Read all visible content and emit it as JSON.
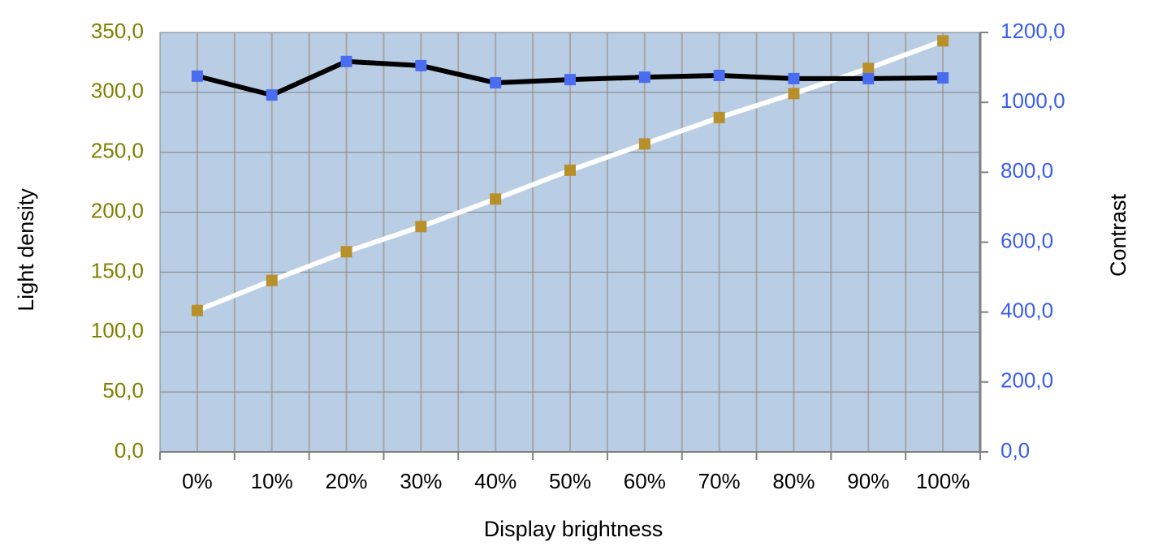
{
  "chart_data": {
    "type": "line",
    "xlabel": "Display brightness",
    "ylabel": "Light density",
    "y2label": "Contrast",
    "categories": [
      "0%",
      "10%",
      "20%",
      "30%",
      "40%",
      "50%",
      "60%",
      "70%",
      "80%",
      "90%",
      "100%"
    ],
    "series": [
      {
        "color": "#ffffff",
        "marker_color": "#b8902a",
        "values": [
          118,
          143,
          167,
          188,
          211,
          235,
          257,
          279,
          299,
          320,
          343
        ]
      },
      {
        "color": "#000000",
        "marker_color": "#4a6cf0",
        "axis": "y2",
        "values": [
          1075,
          1021,
          1117,
          1105,
          1056,
          1065,
          1072,
          1077,
          1068,
          1068,
          1070
        ]
      }
    ],
    "ylim": [
      0,
      350
    ],
    "yticks": [
      {
        "value": 0,
        "label": "0,0"
      },
      {
        "value": 50,
        "label": "50,0"
      },
      {
        "value": 100,
        "label": "100,0"
      },
      {
        "value": 150,
        "label": "150,0"
      },
      {
        "value": 200,
        "label": "200,0"
      },
      {
        "value": 250,
        "label": "250,0"
      },
      {
        "value": 300,
        "label": "300,0"
      },
      {
        "value": 350,
        "label": "350,0"
      }
    ],
    "y2lim": [
      0,
      1200
    ],
    "y2ticks": [
      {
        "value": 0,
        "label": "0,0"
      },
      {
        "value": 200,
        "label": "200,0"
      },
      {
        "value": 400,
        "label": "400,0"
      },
      {
        "value": 600,
        "label": "600,0"
      },
      {
        "value": 800,
        "label": "800,0"
      },
      {
        "value": 1000,
        "label": "1000,0"
      },
      {
        "value": 1200,
        "label": "1200,0"
      }
    ],
    "ytick_color": "#808000",
    "y2tick_color": "#3a5ef0",
    "plot_background": "#b9cde5",
    "grid": true
  }
}
